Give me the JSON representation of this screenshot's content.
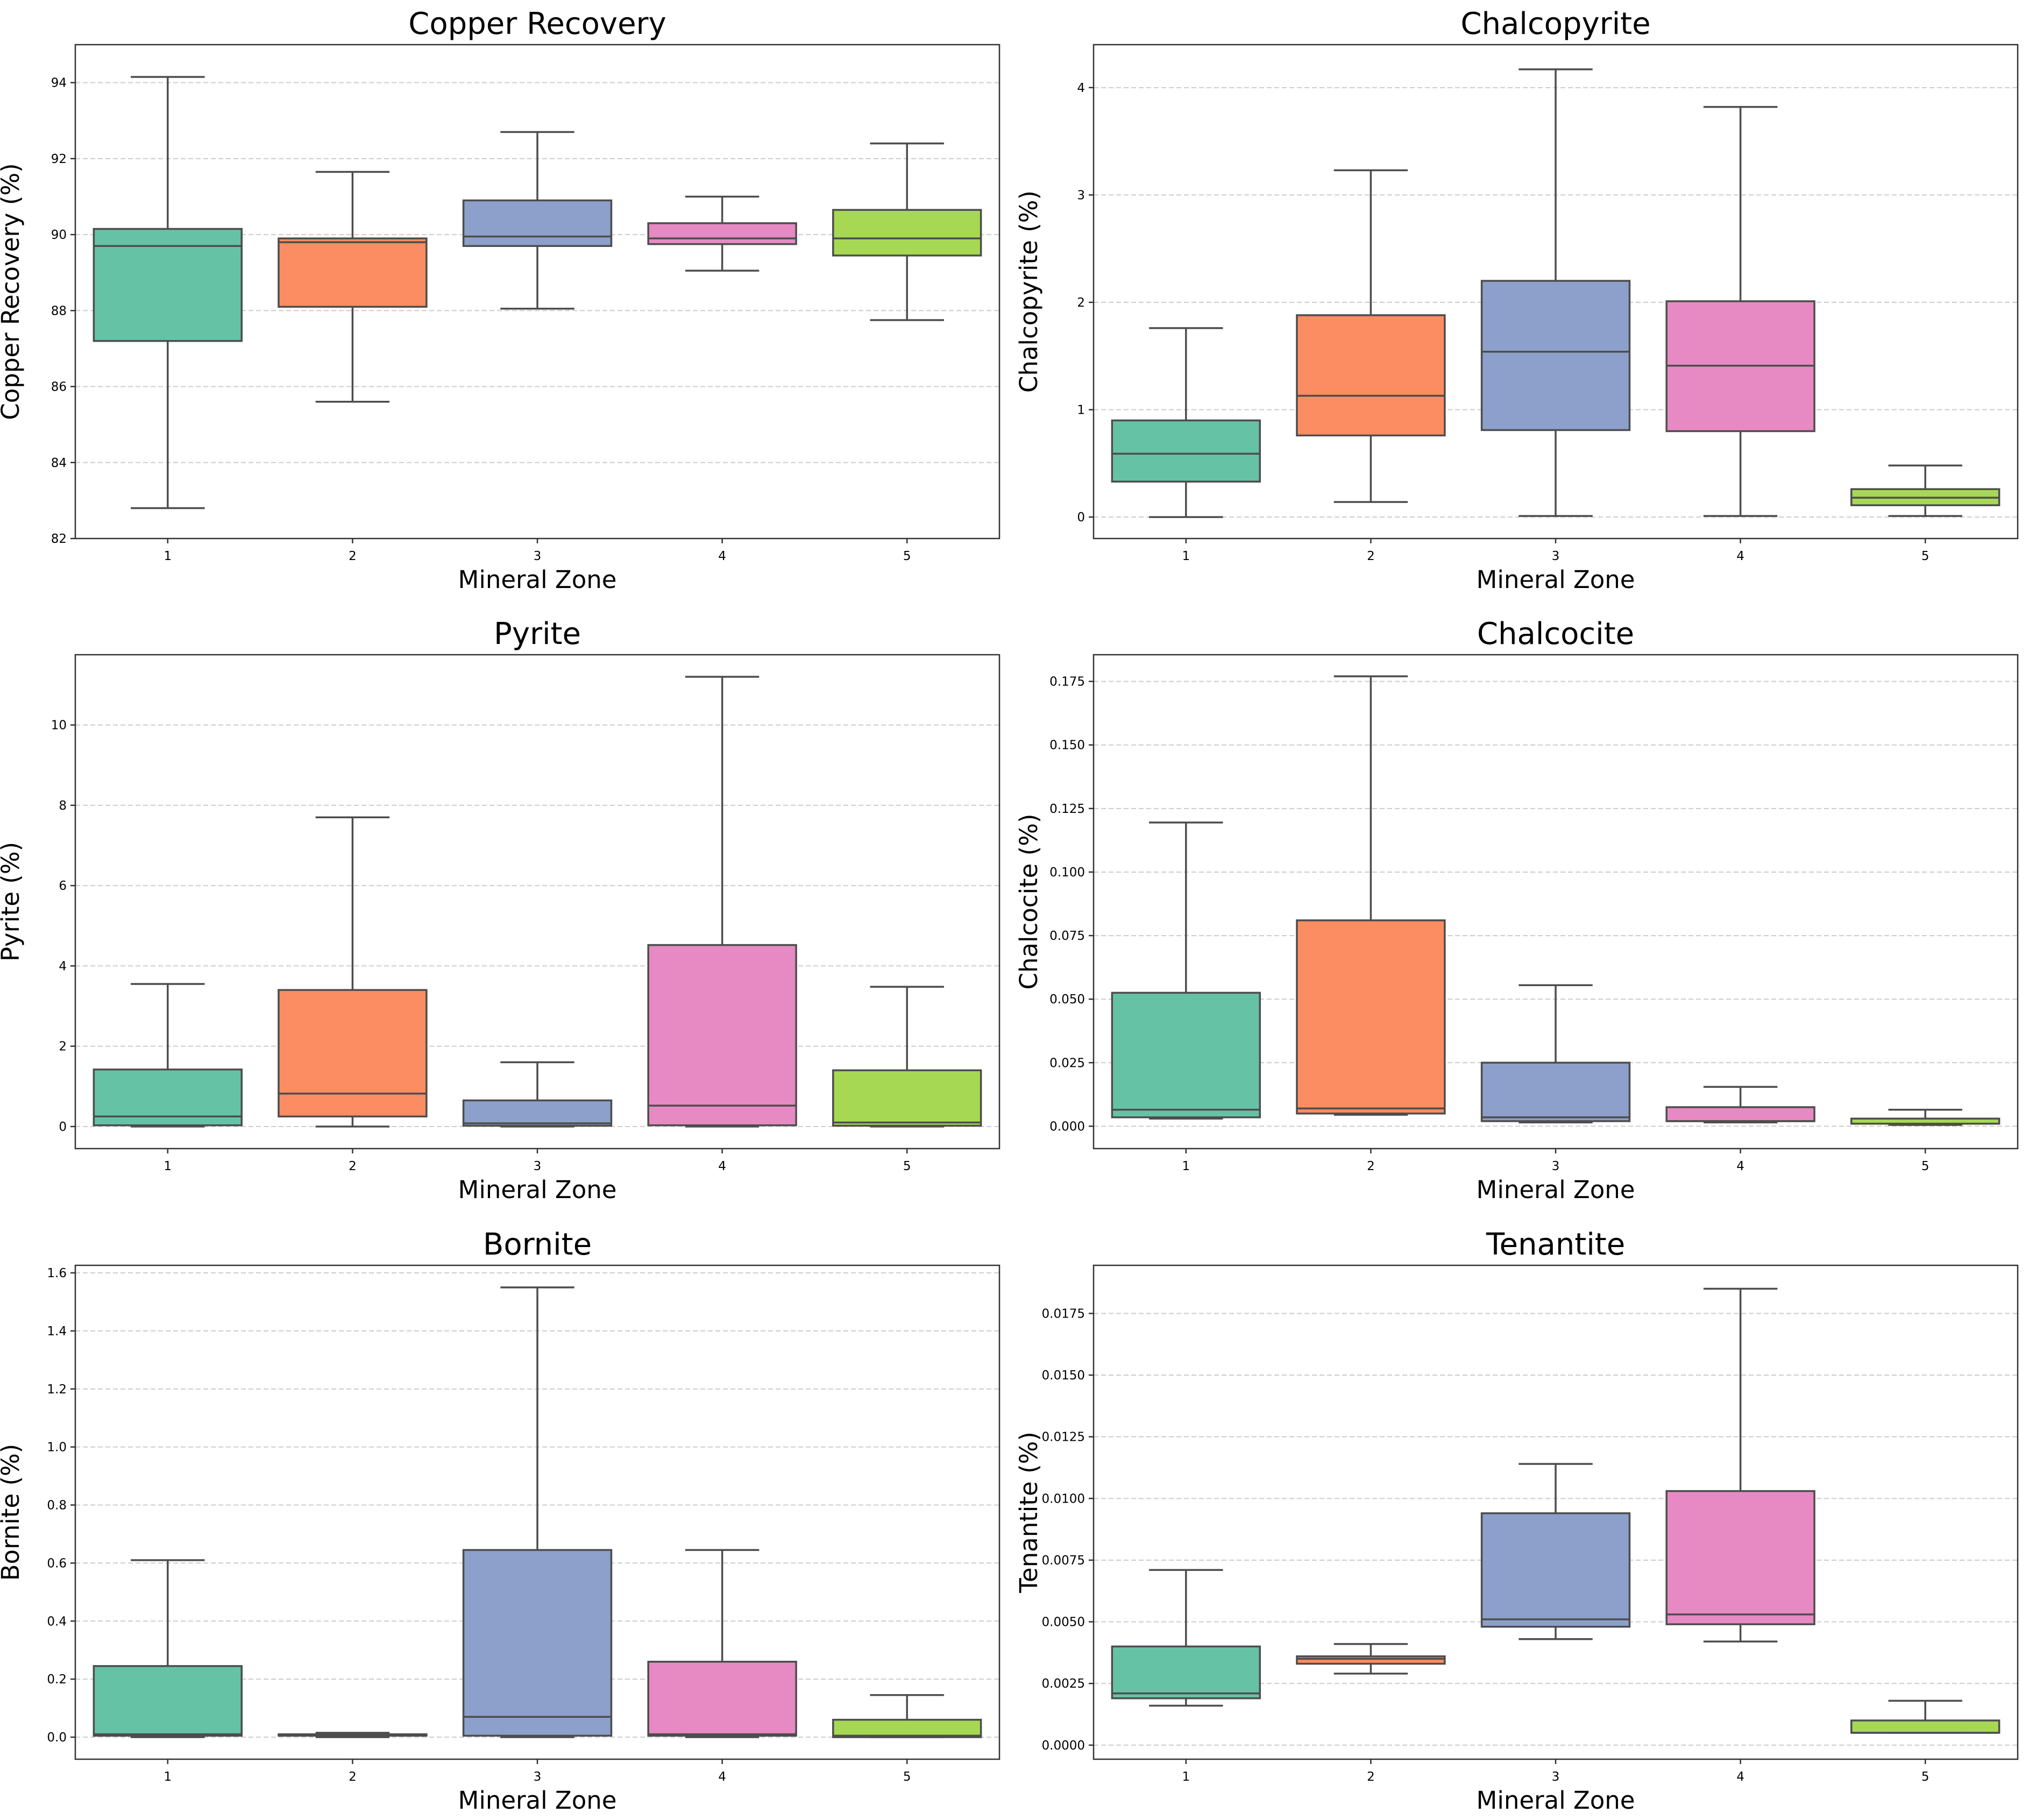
{
  "figure": {
    "zone_colors": [
      "#66c2a5",
      "#fc8d62",
      "#8da0cb",
      "#e78ac3",
      "#a6d854"
    ],
    "frame_color": "#333333",
    "whisker_color": "#4d4d4d",
    "grid_color": "#cccccc"
  },
  "chart_data": [
    {
      "type": "box",
      "title": "Copper Recovery",
      "xlabel": "Mineral Zone",
      "ylabel": "Copper Recovery (%)",
      "categories": [
        "1",
        "2",
        "3",
        "4",
        "5"
      ],
      "ylim": [
        82,
        95
      ],
      "yticks": [
        82,
        84,
        86,
        88,
        90,
        92,
        94
      ],
      "ytick_labels": [
        "82",
        "84",
        "86",
        "88",
        "90",
        "92",
        "94"
      ],
      "grid": "y-dashed",
      "boxes": [
        {
          "min": 82.8,
          "q1": 87.2,
          "median": 89.7,
          "q3": 90.15,
          "max": 94.15
        },
        {
          "min": 85.6,
          "q1": 88.1,
          "median": 89.8,
          "q3": 89.9,
          "max": 91.65
        },
        {
          "min": 88.05,
          "q1": 89.7,
          "median": 89.95,
          "q3": 90.9,
          "max": 92.7
        },
        {
          "min": 89.05,
          "q1": 89.75,
          "median": 89.9,
          "q3": 90.3,
          "max": 91.0
        },
        {
          "min": 87.75,
          "q1": 89.45,
          "median": 89.9,
          "q3": 90.65,
          "max": 92.4
        }
      ]
    },
    {
      "type": "box",
      "title": "Chalcopyrite",
      "xlabel": "Mineral Zone",
      "ylabel": "Chalcopyrite (%)",
      "categories": [
        "1",
        "2",
        "3",
        "4",
        "5"
      ],
      "ylim": [
        -0.2,
        4.4
      ],
      "yticks": [
        0,
        1,
        2,
        3,
        4
      ],
      "ytick_labels": [
        "0",
        "1",
        "2",
        "3",
        "4"
      ],
      "grid": "y-dashed",
      "boxes": [
        {
          "min": 0.0,
          "q1": 0.33,
          "median": 0.59,
          "q3": 0.9,
          "max": 1.76
        },
        {
          "min": 0.14,
          "q1": 0.76,
          "median": 1.13,
          "q3": 1.88,
          "max": 3.23
        },
        {
          "min": 0.01,
          "q1": 0.81,
          "median": 1.54,
          "q3": 2.2,
          "max": 4.17
        },
        {
          "min": 0.01,
          "q1": 0.8,
          "median": 1.41,
          "q3": 2.01,
          "max": 3.82
        },
        {
          "min": 0.01,
          "q1": 0.11,
          "median": 0.18,
          "q3": 0.26,
          "max": 0.48
        }
      ]
    },
    {
      "type": "box",
      "title": "Pyrite",
      "xlabel": "Mineral Zone",
      "ylabel": "Pyrite (%)",
      "categories": [
        "1",
        "2",
        "3",
        "4",
        "5"
      ],
      "ylim": [
        -0.55,
        11.75
      ],
      "yticks": [
        0,
        2,
        4,
        6,
        8,
        10
      ],
      "ytick_labels": [
        "0",
        "2",
        "4",
        "6",
        "8",
        "10"
      ],
      "grid": "y-dashed",
      "boxes": [
        {
          "min": 0.0,
          "q1": 0.03,
          "median": 0.25,
          "q3": 1.42,
          "max": 3.55
        },
        {
          "min": 0.0,
          "q1": 0.25,
          "median": 0.82,
          "q3": 3.4,
          "max": 7.7
        },
        {
          "min": 0.0,
          "q1": 0.02,
          "median": 0.08,
          "q3": 0.65,
          "max": 1.6
        },
        {
          "min": 0.0,
          "q1": 0.03,
          "median": 0.52,
          "q3": 4.52,
          "max": 11.2
        },
        {
          "min": 0.0,
          "q1": 0.02,
          "median": 0.1,
          "q3": 1.4,
          "max": 3.48
        }
      ]
    },
    {
      "type": "box",
      "title": "Chalcocite",
      "xlabel": "Mineral Zone",
      "ylabel": "Chalcocite (%)",
      "categories": [
        "1",
        "2",
        "3",
        "4",
        "5"
      ],
      "ylim": [
        -0.0088,
        0.1855
      ],
      "yticks": [
        0,
        0.025,
        0.05,
        0.075,
        0.1,
        0.125,
        0.15,
        0.175
      ],
      "ytick_labels": [
        "0.000",
        "0.025",
        "0.050",
        "0.075",
        "0.100",
        "0.125",
        "0.150",
        "0.175"
      ],
      "grid": "y-dashed",
      "boxes": [
        {
          "min": 0.003,
          "q1": 0.0035,
          "median": 0.0065,
          "q3": 0.0525,
          "max": 0.1195
        },
        {
          "min": 0.0045,
          "q1": 0.005,
          "median": 0.007,
          "q3": 0.081,
          "max": 0.177
        },
        {
          "min": 0.0015,
          "q1": 0.002,
          "median": 0.0035,
          "q3": 0.025,
          "max": 0.0555
        },
        {
          "min": 0.0015,
          "q1": 0.002,
          "median": 0.002,
          "q3": 0.0075,
          "max": 0.0155
        },
        {
          "min": 0.0005,
          "q1": 0.001,
          "median": 0.001,
          "q3": 0.003,
          "max": 0.0065
        }
      ]
    },
    {
      "type": "box",
      "title": "Bornite",
      "xlabel": "Mineral Zone",
      "ylabel": "Bornite (%)",
      "categories": [
        "1",
        "2",
        "3",
        "4",
        "5"
      ],
      "ylim": [
        -0.076,
        1.626
      ],
      "yticks": [
        0,
        0.2,
        0.4,
        0.6,
        0.8,
        1.0,
        1.2,
        1.4,
        1.6
      ],
      "ytick_labels": [
        "0.0",
        "0.2",
        "0.4",
        "0.6",
        "0.8",
        "1.0",
        "1.2",
        "1.4",
        "1.6"
      ],
      "grid": "y-dashed",
      "boxes": [
        {
          "min": 0.0,
          "q1": 0.005,
          "median": 0.01,
          "q3": 0.245,
          "max": 0.61
        },
        {
          "min": 0.0,
          "q1": 0.005,
          "median": 0.008,
          "q3": 0.01,
          "max": 0.015
        },
        {
          "min": 0.0,
          "q1": 0.005,
          "median": 0.07,
          "q3": 0.645,
          "max": 1.55
        },
        {
          "min": 0.0,
          "q1": 0.005,
          "median": 0.01,
          "q3": 0.26,
          "max": 0.645
        },
        {
          "min": 0.0,
          "q1": 0.0,
          "median": 0.005,
          "q3": 0.06,
          "max": 0.145
        }
      ]
    },
    {
      "type": "box",
      "title": "Tenantite",
      "xlabel": "Mineral Zone",
      "ylabel": "Tenantite (%)",
      "categories": [
        "1",
        "2",
        "3",
        "4",
        "5"
      ],
      "ylim": [
        -0.00057,
        0.01945
      ],
      "yticks": [
        0,
        0.0025,
        0.005,
        0.0075,
        0.01,
        0.0125,
        0.015,
        0.0175
      ],
      "ytick_labels": [
        "0.0000",
        "0.0025",
        "0.0050",
        "0.0075",
        "0.0100",
        "0.0125",
        "0.0150",
        "0.0175"
      ],
      "grid": "y-dashed",
      "boxes": [
        {
          "min": 0.0016,
          "q1": 0.0019,
          "median": 0.0021,
          "q3": 0.004,
          "max": 0.0071
        },
        {
          "min": 0.0029,
          "q1": 0.0033,
          "median": 0.0035,
          "q3": 0.0036,
          "max": 0.0041
        },
        {
          "min": 0.0043,
          "q1": 0.0048,
          "median": 0.0051,
          "q3": 0.0094,
          "max": 0.0114
        },
        {
          "min": 0.0042,
          "q1": 0.0049,
          "median": 0.0053,
          "q3": 0.0103,
          "max": 0.0185
        },
        {
          "min": 0.0005,
          "q1": 0.0005,
          "median": 0.0005,
          "q3": 0.001,
          "max": 0.0018
        }
      ]
    }
  ]
}
